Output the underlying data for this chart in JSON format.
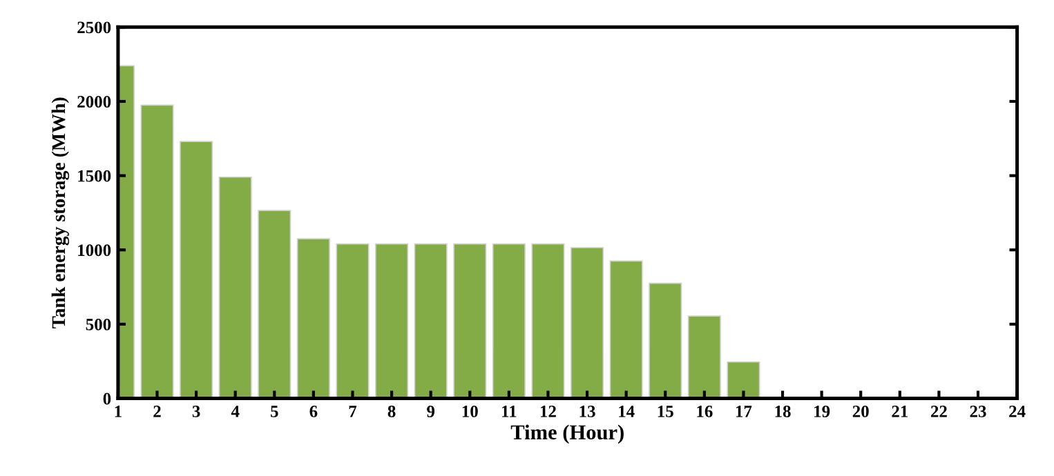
{
  "chart_data": {
    "type": "bar",
    "xlabel": "Time (Hour)",
    "ylabel": "Tank energy storage (MWh)",
    "x": [
      1,
      2,
      3,
      4,
      5,
      6,
      7,
      8,
      9,
      10,
      11,
      12,
      13,
      14,
      15,
      16,
      17
    ],
    "values": [
      2240,
      1975,
      1730,
      1490,
      1265,
      1075,
      1040,
      1040,
      1040,
      1040,
      1040,
      1040,
      1015,
      925,
      775,
      555,
      245
    ],
    "color": "#84ac46",
    "xlim": [
      1,
      24
    ],
    "xticks": [
      1,
      2,
      3,
      4,
      5,
      6,
      7,
      8,
      9,
      10,
      11,
      12,
      13,
      14,
      15,
      16,
      17,
      18,
      19,
      20,
      21,
      22,
      23,
      24
    ],
    "ylim": [
      0,
      2500
    ],
    "yticks": [
      0,
      500,
      1000,
      1500,
      2000,
      2500
    ],
    "grid": false,
    "legend": false
  }
}
